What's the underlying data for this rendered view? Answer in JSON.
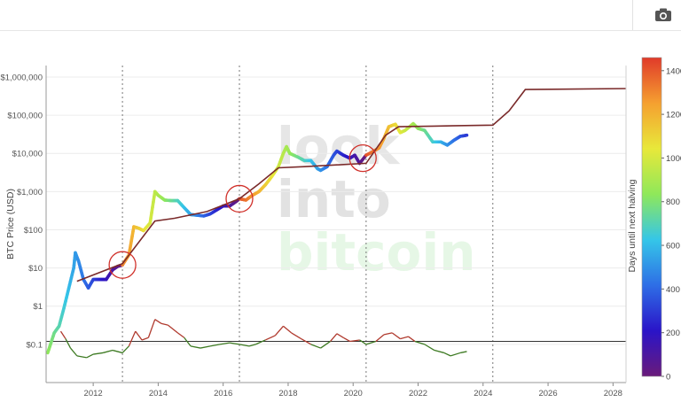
{
  "toolbar": {
    "camera_icon": "camera-icon"
  },
  "watermark": [
    "look",
    "into",
    "bitcoin"
  ],
  "colorbar": {
    "title": "Days until next halving",
    "ticks": [
      "0",
      "200",
      "400",
      "600",
      "800",
      "1000",
      "1200",
      "1400"
    ],
    "colors": [
      "#6a1b7a",
      "#2a14c8",
      "#2e6ee6",
      "#35c6e8",
      "#8fe85a",
      "#e8e83a",
      "#f5a030",
      "#e03a2a"
    ]
  },
  "chart_data": {
    "type": "line",
    "yscale": "log",
    "ylabel": "BTC Price (USD)",
    "ylim": [
      0.01,
      2000000
    ],
    "xlim": [
      2010.55,
      2028.4
    ],
    "xticks": [
      "2012",
      "2014",
      "2016",
      "2018",
      "2020",
      "2022",
      "2024",
      "2026",
      "2028"
    ],
    "yticks": [
      "$0.1",
      "$1",
      "$10",
      "$100",
      "$1,000",
      "$10,000",
      "$100,000",
      "$1,000,000"
    ],
    "halvings": [
      2012.9,
      2016.5,
      2020.4,
      2024.3
    ],
    "circled_points": [
      [
        2012.9,
        12
      ],
      [
        2016.5,
        650
      ],
      [
        2020.3,
        7500
      ]
    ],
    "horizontal_reference_y": 0.12,
    "series": [
      {
        "name": "",
        "color_scale": "days until next halving",
        "points": [
          [
            2010.6,
            0.06
          ],
          [
            2010.8,
            0.2
          ],
          [
            2010.95,
            0.3
          ],
          [
            2011.1,
            0.9
          ],
          [
            2011.25,
            3
          ],
          [
            2011.4,
            10
          ],
          [
            2011.45,
            25
          ],
          [
            2011.55,
            15
          ],
          [
            2011.7,
            5
          ],
          [
            2011.85,
            3
          ],
          [
            2012.0,
            5
          ],
          [
            2012.2,
            5
          ],
          [
            2012.4,
            5
          ],
          [
            2012.6,
            9
          ],
          [
            2012.75,
            11
          ],
          [
            2012.9,
            12
          ],
          [
            2013.1,
            22
          ],
          [
            2013.25,
            120
          ],
          [
            2013.4,
            110
          ],
          [
            2013.55,
            95
          ],
          [
            2013.75,
            150
          ],
          [
            2013.9,
            1000
          ],
          [
            2014.0,
            800
          ],
          [
            2014.2,
            600
          ],
          [
            2014.4,
            580
          ],
          [
            2014.6,
            580
          ],
          [
            2014.8,
            380
          ],
          [
            2015.0,
            250
          ],
          [
            2015.2,
            240
          ],
          [
            2015.4,
            230
          ],
          [
            2015.6,
            260
          ],
          [
            2015.8,
            330
          ],
          [
            2016.0,
            420
          ],
          [
            2016.2,
            420
          ],
          [
            2016.4,
            550
          ],
          [
            2016.5,
            650
          ],
          [
            2016.7,
            600
          ],
          [
            2016.9,
            800
          ],
          [
            2017.1,
            1000
          ],
          [
            2017.3,
            1500
          ],
          [
            2017.5,
            2500
          ],
          [
            2017.7,
            4500
          ],
          [
            2017.85,
            10000
          ],
          [
            2017.95,
            15000
          ],
          [
            2018.05,
            10000
          ],
          [
            2018.3,
            8000
          ],
          [
            2018.5,
            6500
          ],
          [
            2018.7,
            6500
          ],
          [
            2018.9,
            4000
          ],
          [
            2019.0,
            3600
          ],
          [
            2019.2,
            4500
          ],
          [
            2019.4,
            9000
          ],
          [
            2019.5,
            11500
          ],
          [
            2019.7,
            9000
          ],
          [
            2019.9,
            7500
          ],
          [
            2020.05,
            9000
          ],
          [
            2020.2,
            5500
          ],
          [
            2020.4,
            9000
          ],
          [
            2020.6,
            11000
          ],
          [
            2020.8,
            14000
          ],
          [
            2020.95,
            25000
          ],
          [
            2021.1,
            50000
          ],
          [
            2021.3,
            58000
          ],
          [
            2021.45,
            35000
          ],
          [
            2021.6,
            40000
          ],
          [
            2021.85,
            60000
          ],
          [
            2022.0,
            45000
          ],
          [
            2022.2,
            40000
          ],
          [
            2022.45,
            20000
          ],
          [
            2022.7,
            20000
          ],
          [
            2022.9,
            16500
          ],
          [
            2023.1,
            22000
          ],
          [
            2023.3,
            28000
          ],
          [
            2023.5,
            30000
          ]
        ]
      },
      {
        "name": "",
        "color": "#7a2a2a",
        "points": [
          [
            2011.5,
            4.5
          ],
          [
            2012.9,
            13
          ],
          [
            2013.9,
            170
          ],
          [
            2014.5,
            200
          ],
          [
            2015.5,
            300
          ],
          [
            2016.5,
            650
          ],
          [
            2017.1,
            1600
          ],
          [
            2017.7,
            4200
          ],
          [
            2018.5,
            4500
          ],
          [
            2020.4,
            5500
          ],
          [
            2021.0,
            30000
          ],
          [
            2021.4,
            50000
          ],
          [
            2022.5,
            52000
          ],
          [
            2024.3,
            55000
          ],
          [
            2024.8,
            130000
          ],
          [
            2025.3,
            470000
          ],
          [
            2028.4,
            500000
          ]
        ]
      },
      {
        "name": "",
        "colors": [
          "#b03a2e",
          "#3d7a22"
        ],
        "points": [
          [
            2011.0,
            0.22
          ],
          [
            2011.15,
            0.14
          ],
          [
            2011.3,
            0.08
          ],
          [
            2011.5,
            0.05
          ],
          [
            2011.8,
            0.045
          ],
          [
            2012.0,
            0.055
          ],
          [
            2012.3,
            0.06
          ],
          [
            2012.6,
            0.07
          ],
          [
            2012.9,
            0.06
          ],
          [
            2013.1,
            0.09
          ],
          [
            2013.3,
            0.22
          ],
          [
            2013.5,
            0.13
          ],
          [
            2013.7,
            0.15
          ],
          [
            2013.9,
            0.45
          ],
          [
            2014.1,
            0.35
          ],
          [
            2014.3,
            0.32
          ],
          [
            2014.6,
            0.2
          ],
          [
            2014.8,
            0.15
          ],
          [
            2015.0,
            0.09
          ],
          [
            2015.3,
            0.08
          ],
          [
            2015.6,
            0.09
          ],
          [
            2015.9,
            0.1
          ],
          [
            2016.2,
            0.11
          ],
          [
            2016.5,
            0.1
          ],
          [
            2016.8,
            0.09
          ],
          [
            2017.0,
            0.1
          ],
          [
            2017.3,
            0.13
          ],
          [
            2017.6,
            0.17
          ],
          [
            2017.85,
            0.3
          ],
          [
            2018.1,
            0.2
          ],
          [
            2018.4,
            0.14
          ],
          [
            2018.7,
            0.1
          ],
          [
            2019.0,
            0.08
          ],
          [
            2019.3,
            0.12
          ],
          [
            2019.5,
            0.19
          ],
          [
            2019.7,
            0.15
          ],
          [
            2019.9,
            0.12
          ],
          [
            2020.2,
            0.13
          ],
          [
            2020.4,
            0.1
          ],
          [
            2020.7,
            0.12
          ],
          [
            2020.95,
            0.18
          ],
          [
            2021.2,
            0.2
          ],
          [
            2021.45,
            0.14
          ],
          [
            2021.7,
            0.16
          ],
          [
            2021.9,
            0.12
          ],
          [
            2022.2,
            0.1
          ],
          [
            2022.5,
            0.07
          ],
          [
            2022.8,
            0.06
          ],
          [
            2023.0,
            0.05
          ],
          [
            2023.3,
            0.06
          ],
          [
            2023.5,
            0.065
          ]
        ]
      }
    ]
  }
}
